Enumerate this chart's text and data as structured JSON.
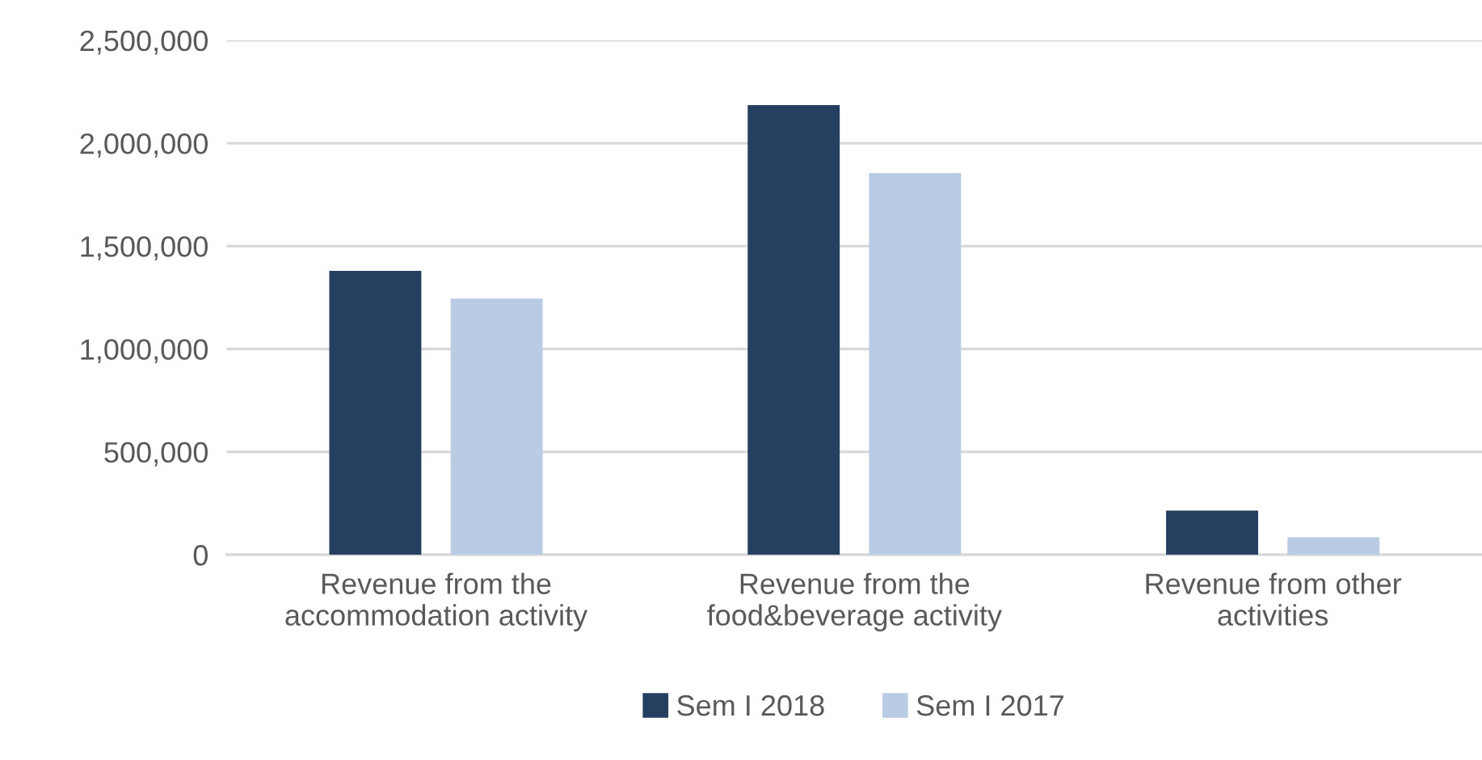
{
  "chart_data": {
    "type": "bar",
    "categories": [
      "Revenue from the\naccommodation activity",
      "Revenue from the\nfood&beverage activity",
      "Revenue from other\nactivities"
    ],
    "series": [
      {
        "name": "Sem I 2018",
        "color": "#253f61",
        "values": [
          1380000,
          2185000,
          215000
        ]
      },
      {
        "name": "Sem I 2017",
        "color": "#b9cce4",
        "values": [
          1245000,
          1855000,
          85000
        ]
      }
    ],
    "ylim": [
      0,
      2500000
    ],
    "yticks": [
      {
        "value": 0,
        "label": "0"
      },
      {
        "value": 500000,
        "label": "500,000"
      },
      {
        "value": 1000000,
        "label": "1,000,000"
      },
      {
        "value": 1500000,
        "label": "1,500,000"
      },
      {
        "value": 2000000,
        "label": "2,000,000"
      },
      {
        "value": 2500000,
        "label": "2,500,000"
      }
    ],
    "grid": "y",
    "legend": "bottom"
  }
}
